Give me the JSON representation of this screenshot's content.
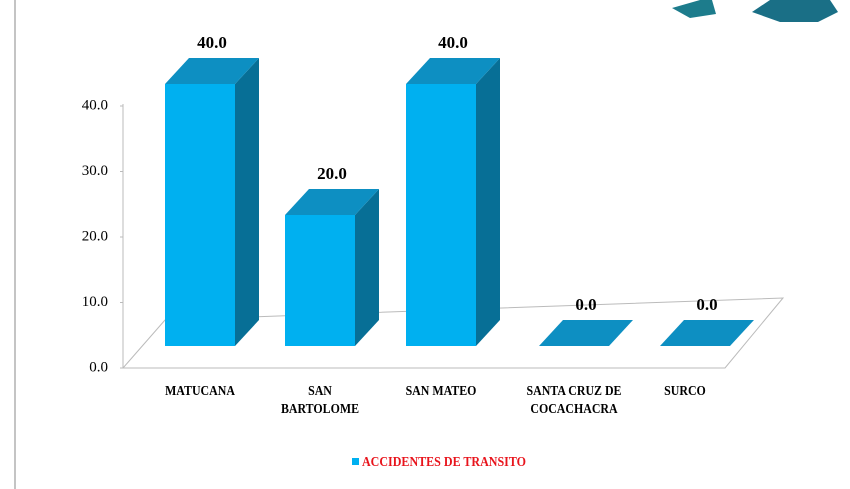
{
  "chart_data": {
    "type": "bar3d",
    "categories": [
      "MATUCANA",
      "SAN BARTOLOME",
      "SAN MATEO",
      "SANTA CRUZ DE COCACHACRA",
      "SURCO"
    ],
    "series": [
      {
        "name": "ACCIDENTES DE TRANSITO",
        "color": "#00b0f0",
        "values": [
          40,
          20,
          40,
          0,
          0
        ],
        "value_labels": [
          "40.0",
          "20.0",
          "40.0",
          "0.0",
          "0.0"
        ]
      }
    ],
    "ylim": [
      0,
      40
    ],
    "yticks": [
      {
        "value": 0,
        "label": "0.0"
      },
      {
        "value": 10,
        "label": "10.0"
      },
      {
        "value": 20,
        "label": "20.0"
      },
      {
        "value": 30,
        "label": "30.0"
      },
      {
        "value": 40,
        "label": "40.0"
      }
    ],
    "legend": "bottom"
  }
}
